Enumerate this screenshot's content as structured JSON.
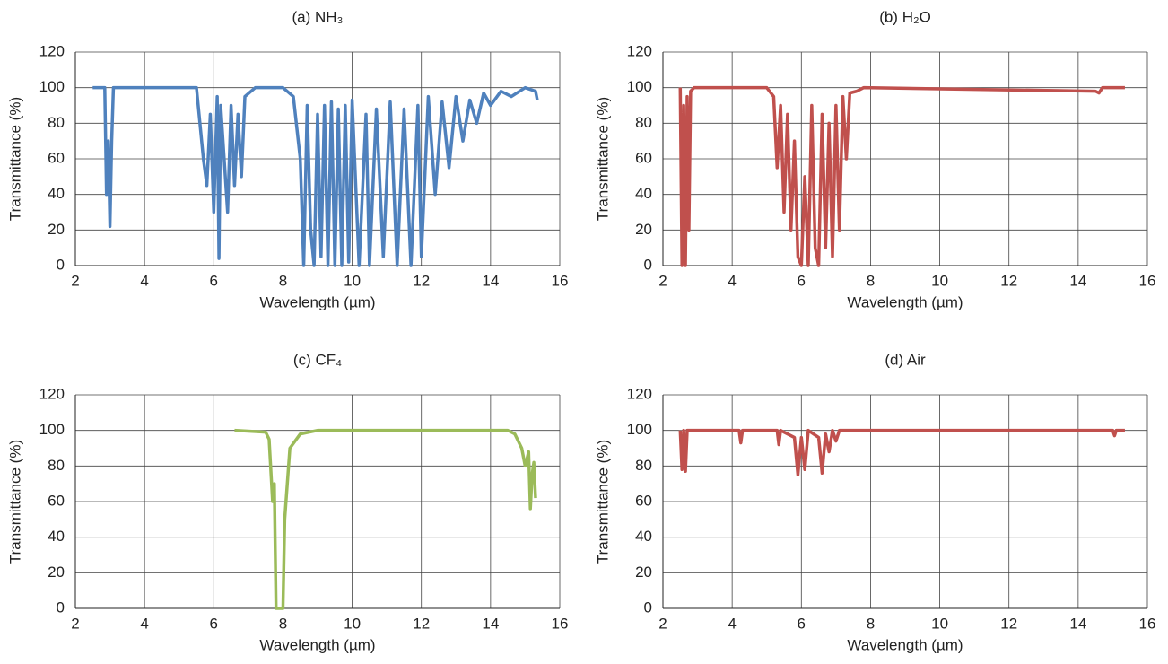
{
  "chart_data": [
    {
      "type": "line",
      "title": "(a) NH₃",
      "xlabel": "Wavelength (µm)",
      "ylabel": "Transmittance (%)",
      "x": [
        2.5,
        2.85,
        2.9,
        2.95,
        3.0,
        3.05,
        3.1,
        5.5,
        5.7,
        5.8,
        5.9,
        6.0,
        6.1,
        6.15,
        6.2,
        6.3,
        6.4,
        6.5,
        6.6,
        6.7,
        6.8,
        6.9,
        7.2,
        8.0,
        8.3,
        8.5,
        8.6,
        8.7,
        8.8,
        8.9,
        9.0,
        9.1,
        9.2,
        9.3,
        9.4,
        9.5,
        9.6,
        9.7,
        9.8,
        9.9,
        10.0,
        10.2,
        10.4,
        10.5,
        10.7,
        10.9,
        11.1,
        11.3,
        11.5,
        11.7,
        11.9,
        12.0,
        12.2,
        12.4,
        12.6,
        12.8,
        13.0,
        13.2,
        13.4,
        13.6,
        13.8,
        14.0,
        14.3,
        14.6,
        15.0,
        15.3,
        15.35
      ],
      "values": [
        100,
        100,
        40,
        70,
        22,
        70,
        100,
        100,
        60,
        45,
        85,
        30,
        95,
        4,
        90,
        60,
        30,
        90,
        45,
        85,
        50,
        95,
        100,
        100,
        95,
        60,
        0,
        90,
        20,
        0,
        85,
        5,
        90,
        0,
        92,
        0,
        88,
        0,
        90,
        2,
        93,
        0,
        85,
        0,
        88,
        5,
        92,
        0,
        88,
        0,
        90,
        5,
        95,
        40,
        92,
        55,
        95,
        70,
        93,
        80,
        97,
        90,
        98,
        95,
        100,
        98,
        93
      ],
      "color": "#4f81bd",
      "xlim": [
        2,
        16
      ],
      "xticks": [
        2,
        4,
        6,
        8,
        10,
        12,
        14,
        16
      ],
      "ylim": [
        0,
        120
      ],
      "yticks": [
        0,
        20,
        40,
        60,
        80,
        100,
        120
      ],
      "grid": true
    },
    {
      "type": "line",
      "title": "(b) H₂O",
      "xlabel": "Wavelength (µm)",
      "ylabel": "Transmittance (%)",
      "x": [
        2.5,
        2.55,
        2.6,
        2.65,
        2.7,
        2.75,
        2.8,
        2.9,
        5.0,
        5.2,
        5.3,
        5.4,
        5.5,
        5.6,
        5.7,
        5.8,
        5.9,
        6.0,
        6.1,
        6.2,
        6.3,
        6.4,
        6.5,
        6.6,
        6.7,
        6.8,
        6.9,
        7.0,
        7.1,
        7.2,
        7.3,
        7.4,
        7.6,
        7.8,
        14.5,
        14.6,
        14.7,
        15.35
      ],
      "values": [
        100,
        0,
        90,
        0,
        95,
        20,
        98,
        100,
        100,
        95,
        55,
        90,
        30,
        85,
        20,
        70,
        5,
        0,
        50,
        0,
        90,
        10,
        0,
        85,
        10,
        80,
        5,
        90,
        20,
        95,
        60,
        97,
        98,
        100,
        98,
        97,
        100,
        100
      ],
      "color": "#c0504d",
      "xlim": [
        2,
        16
      ],
      "xticks": [
        2,
        4,
        6,
        8,
        10,
        12,
        14,
        16
      ],
      "ylim": [
        0,
        120
      ],
      "yticks": [
        0,
        20,
        40,
        60,
        80,
        100,
        120
      ],
      "grid": true
    },
    {
      "type": "line",
      "title": "(c) CF₄",
      "xlabel": "Wavelength (µm)",
      "ylabel": "Transmittance (%)",
      "x": [
        6.6,
        7.5,
        7.6,
        7.7,
        7.75,
        7.8,
        8.0,
        8.05,
        8.2,
        8.5,
        9.0,
        14.5,
        14.7,
        14.9,
        15.0,
        15.1,
        15.15,
        15.2,
        15.25,
        15.3
      ],
      "values": [
        100,
        99,
        95,
        60,
        70,
        0,
        0,
        50,
        90,
        98,
        100,
        100,
        98,
        90,
        80,
        88,
        56,
        75,
        82,
        62
      ],
      "color": "#9bbb59",
      "xlim": [
        2,
        16
      ],
      "xticks": [
        2,
        4,
        6,
        8,
        10,
        12,
        14,
        16
      ],
      "ylim": [
        0,
        120
      ],
      "yticks": [
        0,
        20,
        40,
        60,
        80,
        100,
        120
      ],
      "grid": true
    },
    {
      "type": "line",
      "title": "(d) Air",
      "xlabel": "Wavelength (µm)",
      "ylabel": "Transmittance (%)",
      "x": [
        2.5,
        2.55,
        2.6,
        2.65,
        2.7,
        4.2,
        4.25,
        4.3,
        5.3,
        5.35,
        5.4,
        5.8,
        5.9,
        6.0,
        6.1,
        6.2,
        6.5,
        6.6,
        6.7,
        6.8,
        6.9,
        7.0,
        7.1,
        15.0,
        15.05,
        15.1,
        15.35
      ],
      "values": [
        100,
        78,
        100,
        77,
        100,
        100,
        93,
        100,
        100,
        92,
        100,
        96,
        75,
        96,
        78,
        100,
        96,
        76,
        98,
        88,
        100,
        94,
        100,
        100,
        97,
        100,
        100
      ],
      "color": "#c0504d",
      "xlim": [
        2,
        16
      ],
      "xticks": [
        2,
        4,
        6,
        8,
        10,
        12,
        14,
        16
      ],
      "ylim": [
        0,
        120
      ],
      "yticks": [
        0,
        20,
        40,
        60,
        80,
        100,
        120
      ],
      "grid": true
    }
  ]
}
